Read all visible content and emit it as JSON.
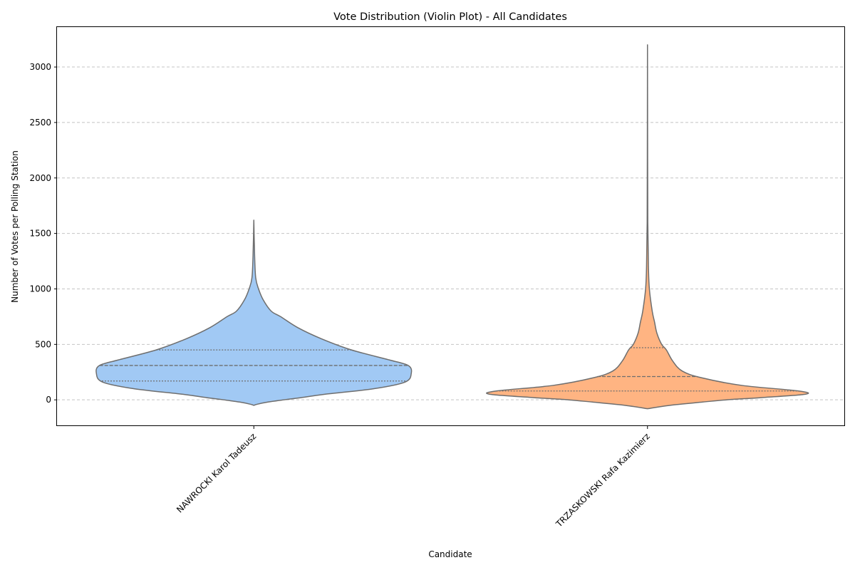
{
  "chart_data": {
    "type": "violin",
    "title": "Vote Distribution (Violin Plot) - All Candidates",
    "xlabel": "Candidate",
    "ylabel": "Number of Votes per Polling Station",
    "ylim": [
      -230,
      3360
    ],
    "yticks": [
      0,
      500,
      1000,
      1500,
      2000,
      2500,
      3000
    ],
    "grid": "horizontal-dashed",
    "categories": [
      "NAWROCKI Karol Tadeusz",
      "TRZASKOWSKI Rafa Kazimierz"
    ],
    "series": [
      {
        "category": "NAWROCKI Karol Tadeusz",
        "color": "#a1c9f4",
        "min": -50,
        "max": 1620,
        "quartiles": [
          170,
          310,
          450
        ],
        "density": [
          [
            -50,
            0.0
          ],
          [
            -40,
            0.02
          ],
          [
            -20,
            0.09
          ],
          [
            0,
            0.19
          ],
          [
            20,
            0.3
          ],
          [
            50,
            0.45
          ],
          [
            100,
            0.76
          ],
          [
            160,
            0.96
          ],
          [
            240,
            1.0
          ],
          [
            310,
            0.98
          ],
          [
            360,
            0.86
          ],
          [
            450,
            0.62
          ],
          [
            550,
            0.43
          ],
          [
            650,
            0.28
          ],
          [
            750,
            0.17
          ],
          [
            800,
            0.11
          ],
          [
            900,
            0.06
          ],
          [
            1000,
            0.03
          ],
          [
            1100,
            0.012
          ],
          [
            1300,
            0.005
          ],
          [
            1620,
            0.0
          ]
        ]
      },
      {
        "category": "TRZASKOWSKI Rafa Kazimierz",
        "color": "#ffb482",
        "min": -80,
        "max": 3200,
        "quartiles": [
          80,
          210,
          470
        ],
        "density": [
          [
            -80,
            0.0
          ],
          [
            -50,
            0.14
          ],
          [
            -20,
            0.35
          ],
          [
            0,
            0.5
          ],
          [
            20,
            0.72
          ],
          [
            50,
            1.0
          ],
          [
            80,
            0.96
          ],
          [
            130,
            0.6
          ],
          [
            200,
            0.34
          ],
          [
            260,
            0.22
          ],
          [
            350,
            0.16
          ],
          [
            450,
            0.12
          ],
          [
            500,
            0.09
          ],
          [
            600,
            0.06
          ],
          [
            700,
            0.045
          ],
          [
            800,
            0.03
          ],
          [
            1000,
            0.012
          ],
          [
            1200,
            0.006
          ],
          [
            1600,
            0.002
          ],
          [
            2200,
            0.001
          ],
          [
            3200,
            0.0
          ]
        ]
      }
    ]
  }
}
